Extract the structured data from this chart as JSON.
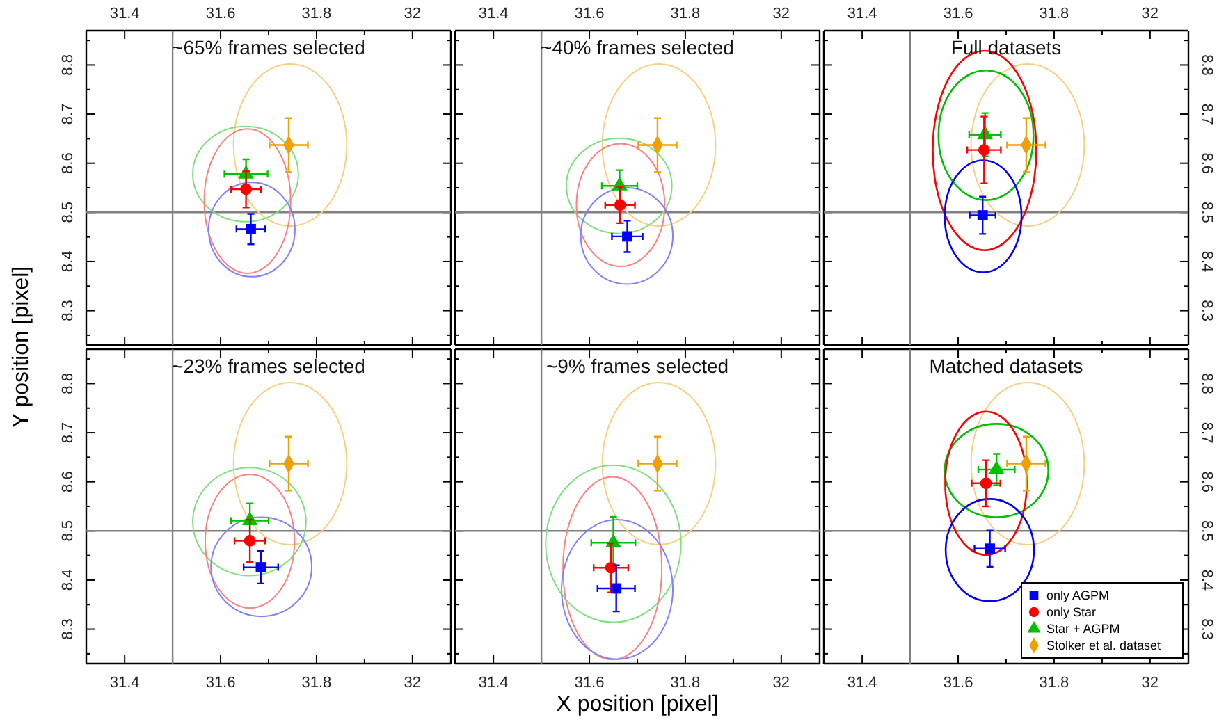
{
  "chart_data": [
    {
      "type": "scatter",
      "title": "~65% frames selected",
      "ylabel": "Y position [pixel]",
      "xlim": [
        31.32,
        32.08
      ],
      "ylim": [
        8.23,
        8.87
      ],
      "xticks": [
        31.4,
        {
          "value": 31.5,
          "label": null
        },
        31.6,
        {
          "value": 31.7,
          "label": null
        },
        31.8,
        {
          "value": 31.9,
          "label": null
        },
        32
      ],
      "yticks": [
        {
          "value": 8.25,
          "label": null
        },
        8.3,
        {
          "value": 8.35,
          "label": null
        },
        8.4,
        {
          "value": 8.45,
          "label": null
        },
        8.5,
        {
          "value": 8.55,
          "label": null
        },
        8.6,
        {
          "value": 8.65,
          "label": null
        },
        8.7,
        {
          "value": 8.75,
          "label": null
        },
        8.8,
        {
          "value": 8.85,
          "label": null
        }
      ],
      "ref_lines": [
        {
          "axis": "x",
          "value": 31.5,
          "color": "#808080"
        },
        {
          "axis": "y",
          "value": 8.5,
          "color": "#808080"
        }
      ],
      "series": [
        {
          "marker": "diamond",
          "color": "#f0a000",
          "x": [
            31.742
          ],
          "values": [
            8.637
          ],
          "errors": [
            0.055
          ],
          "xerrors": [
            0.04
          ]
        },
        {
          "marker": "triangle",
          "color": "#00c000",
          "x": [
            31.653
          ],
          "values": [
            8.578
          ],
          "errors": [
            0.03
          ],
          "xerrors": [
            0.045
          ]
        },
        {
          "marker": "circle",
          "color": "#ff0000",
          "x": [
            31.653
          ],
          "values": [
            8.547
          ],
          "errors": [
            0.037
          ],
          "xerrors": [
            0.031
          ]
        },
        {
          "marker": "square",
          "color": "#0000ff",
          "x": [
            31.663
          ],
          "values": [
            8.466
          ],
          "errors": [
            0.031
          ],
          "xerrors": [
            0.03
          ]
        }
      ]
    },
    {
      "type": "scatter",
      "title": "~40% frames selected",
      "tick_labels": "x",
      "xlim": [
        31.32,
        32.08
      ],
      "ylim": [
        8.23,
        8.87
      ],
      "xticks": [
        31.4,
        {
          "value": 31.5,
          "label": null
        },
        31.6,
        {
          "value": 31.7,
          "label": null
        },
        31.8,
        {
          "value": 31.9,
          "label": null
        },
        32
      ],
      "yticks": [
        {
          "value": 8.25,
          "label": null
        },
        8.3,
        {
          "value": 8.35,
          "label": null
        },
        8.4,
        {
          "value": 8.45,
          "label": null
        },
        8.5,
        {
          "value": 8.55,
          "label": null
        },
        8.6,
        {
          "value": 8.65,
          "label": null
        },
        8.7,
        {
          "value": 8.75,
          "label": null
        },
        8.8,
        {
          "value": 8.85,
          "label": null
        }
      ],
      "ref_lines": [
        {
          "axis": "x",
          "value": 31.5,
          "color": "#808080"
        },
        {
          "axis": "y",
          "value": 8.5,
          "color": "#808080"
        }
      ],
      "series": [
        {
          "marker": "diamond",
          "color": "#f0a000",
          "x": [
            31.742
          ],
          "values": [
            8.637
          ],
          "errors": [
            0.055
          ],
          "xerrors": [
            0.04
          ]
        },
        {
          "marker": "triangle",
          "color": "#00c000",
          "x": [
            31.663
          ],
          "values": [
            8.554
          ],
          "errors": [
            0.032
          ],
          "xerrors": [
            0.037
          ]
        },
        {
          "marker": "circle",
          "color": "#ff0000",
          "x": [
            31.664
          ],
          "values": [
            8.515
          ],
          "errors": [
            0.037
          ],
          "xerrors": [
            0.031
          ]
        },
        {
          "marker": "square",
          "color": "#0000ff",
          "x": [
            31.679
          ],
          "values": [
            8.451
          ],
          "errors": [
            0.032
          ],
          "xerrors": [
            0.032
          ]
        }
      ]
    },
    {
      "type": "scatter",
      "title": "Full datasets",
      "xlim": [
        31.32,
        32.08
      ],
      "ylim": [
        8.23,
        8.87
      ],
      "xticks": [
        31.4,
        {
          "value": 31.5,
          "label": null
        },
        31.6,
        {
          "value": 31.7,
          "label": null
        },
        31.8,
        {
          "value": 31.9,
          "label": null
        },
        32
      ],
      "yticks": [
        {
          "value": 8.25,
          "label": null
        },
        8.3,
        {
          "value": 8.35,
          "label": null
        },
        8.4,
        {
          "value": 8.45,
          "label": null
        },
        8.5,
        {
          "value": 8.55,
          "label": null
        },
        8.6,
        {
          "value": 8.65,
          "label": null
        },
        8.7,
        {
          "value": 8.75,
          "label": null
        },
        8.8,
        {
          "value": 8.85,
          "label": null
        }
      ],
      "ref_lines": [
        {
          "axis": "x",
          "value": 31.5,
          "color": "#808080"
        },
        {
          "axis": "y",
          "value": 8.5,
          "color": "#808080"
        }
      ],
      "series": [
        {
          "marker": "diamond",
          "color": "#f0a000",
          "x": [
            31.742
          ],
          "values": [
            8.637
          ],
          "errors": [
            0.055
          ],
          "xerrors": [
            0.04
          ]
        },
        {
          "marker": "triangle",
          "color": "#00c000",
          "x": [
            31.656
          ],
          "values": [
            8.658
          ],
          "errors": [
            0.044
          ],
          "xerrors": [
            0.033
          ]
        },
        {
          "marker": "circle",
          "color": "#ff0000",
          "x": [
            31.654
          ],
          "values": [
            8.627
          ],
          "errors": [
            0.068
          ],
          "xerrors": [
            0.035
          ]
        },
        {
          "marker": "square",
          "color": "#0000ff",
          "x": [
            31.651
          ],
          "values": [
            8.494
          ],
          "errors": [
            0.038
          ],
          "xerrors": [
            0.027
          ]
        }
      ]
    },
    {
      "type": "scatter",
      "title": "~23% frames selected",
      "xlim": [
        31.32,
        32.08
      ],
      "ylim": [
        8.23,
        8.87
      ],
      "xticks": [
        31.4,
        {
          "value": 31.5,
          "label": null
        },
        31.6,
        {
          "value": 31.7,
          "label": null
        },
        31.8,
        {
          "value": 31.9,
          "label": null
        },
        32
      ],
      "yticks": [
        {
          "value": 8.25,
          "label": null
        },
        8.3,
        {
          "value": 8.35,
          "label": null
        },
        8.4,
        {
          "value": 8.45,
          "label": null
        },
        8.5,
        {
          "value": 8.55,
          "label": null
        },
        8.6,
        {
          "value": 8.65,
          "label": null
        },
        8.7,
        {
          "value": 8.75,
          "label": null
        },
        8.8,
        {
          "value": 8.85,
          "label": null
        }
      ],
      "ref_lines": [
        {
          "axis": "x",
          "value": 31.5,
          "color": "#808080"
        },
        {
          "axis": "y",
          "value": 8.5,
          "color": "#808080"
        }
      ],
      "series": [
        {
          "marker": "diamond",
          "color": "#f0a000",
          "x": [
            31.742
          ],
          "values": [
            8.637
          ],
          "errors": [
            0.055
          ],
          "xerrors": [
            0.04
          ]
        },
        {
          "marker": "triangle",
          "color": "#00c000",
          "x": [
            31.661
          ],
          "values": [
            8.521
          ],
          "errors": [
            0.035
          ],
          "xerrors": [
            0.039
          ]
        },
        {
          "marker": "circle",
          "color": "#ff0000",
          "x": [
            31.661
          ],
          "values": [
            8.48
          ],
          "errors": [
            0.043
          ],
          "xerrors": [
            0.032
          ]
        },
        {
          "marker": "square",
          "color": "#0000ff",
          "x": [
            31.684
          ],
          "values": [
            8.426
          ],
          "errors": [
            0.033
          ],
          "xerrors": [
            0.036
          ]
        }
      ]
    },
    {
      "type": "scatter",
      "title": "~9% frames selected",
      "xlabel": "X position [pixel]",
      "tick_labels": "x",
      "xlim": [
        31.32,
        32.08
      ],
      "ylim": [
        8.23,
        8.87
      ],
      "xticks": [
        31.4,
        {
          "value": 31.5,
          "label": null
        },
        31.6,
        {
          "value": 31.7,
          "label": null
        },
        31.8,
        {
          "value": 31.9,
          "label": null
        },
        32
      ],
      "yticks": [
        {
          "value": 8.25,
          "label": null
        },
        8.3,
        {
          "value": 8.35,
          "label": null
        },
        8.4,
        {
          "value": 8.45,
          "label": null
        },
        8.5,
        {
          "value": 8.55,
          "label": null
        },
        8.6,
        {
          "value": 8.65,
          "label": null
        },
        8.7,
        {
          "value": 8.75,
          "label": null
        },
        8.8,
        {
          "value": 8.85,
          "label": null
        }
      ],
      "ref_lines": [
        {
          "axis": "x",
          "value": 31.5,
          "color": "#808080"
        },
        {
          "axis": "y",
          "value": 8.5,
          "color": "#808080"
        }
      ],
      "series": [
        {
          "marker": "diamond",
          "color": "#f0a000",
          "x": [
            31.742
          ],
          "values": [
            8.637
          ],
          "errors": [
            0.055
          ],
          "xerrors": [
            0.04
          ]
        },
        {
          "marker": "triangle",
          "color": "#00c000",
          "x": [
            31.65
          ],
          "values": [
            8.476
          ],
          "errors": [
            0.053
          ],
          "xerrors": [
            0.046
          ]
        },
        {
          "marker": "circle",
          "color": "#ff0000",
          "x": [
            31.645
          ],
          "values": [
            8.425
          ],
          "errors": [
            0.05
          ],
          "xerrors": [
            0.036
          ]
        },
        {
          "marker": "square",
          "color": "#0000ff",
          "x": [
            31.656
          ],
          "values": [
            8.383
          ],
          "errors": [
            0.047
          ],
          "xerrors": [
            0.039
          ]
        }
      ]
    },
    {
      "type": "scatter",
      "title": "Matched datasets",
      "legend": "bottom right",
      "xlim": [
        31.32,
        32.08
      ],
      "ylim": [
        8.23,
        8.87
      ],
      "xticks": [
        31.4,
        {
          "value": 31.5,
          "label": null
        },
        31.6,
        {
          "value": 31.7,
          "label": null
        },
        31.8,
        {
          "value": 31.9,
          "label": null
        },
        32
      ],
      "yticks": [
        {
          "value": 8.25,
          "label": null
        },
        8.3,
        {
          "value": 8.35,
          "label": null
        },
        8.4,
        {
          "value": 8.45,
          "label": null
        },
        8.5,
        {
          "value": 8.55,
          "label": null
        },
        8.6,
        {
          "value": 8.65,
          "label": null
        },
        8.7,
        {
          "value": 8.75,
          "label": null
        },
        8.8,
        {
          "value": 8.85,
          "label": null
        }
      ],
      "ref_lines": [
        {
          "axis": "x",
          "value": 31.5,
          "color": "#808080"
        },
        {
          "axis": "y",
          "value": 8.5,
          "color": "#808080"
        }
      ],
      "series": [
        {
          "name": "Stolker et al. dataset",
          "marker": "diamond",
          "color": "#f0a000",
          "x": [
            31.742
          ],
          "values": [
            8.637
          ],
          "errors": [
            0.055
          ],
          "xerrors": [
            0.04
          ]
        },
        {
          "name": "Star + AGPM",
          "marker": "triangle",
          "color": "#00c000",
          "x": [
            31.68
          ],
          "values": [
            8.625
          ],
          "errors": [
            0.032
          ],
          "xerrors": [
            0.038
          ]
        },
        {
          "name": "only Star",
          "marker": "circle",
          "color": "#ff0000",
          "x": [
            31.658
          ],
          "values": [
            8.597
          ],
          "errors": [
            0.047
          ],
          "xerrors": [
            0.03
          ]
        },
        {
          "name": "only AGPM",
          "marker": "square",
          "color": "#0000ff",
          "x": [
            31.666
          ],
          "values": [
            8.464
          ],
          "errors": [
            0.037
          ],
          "xerrors": [
            0.032
          ]
        }
      ]
    }
  ]
}
